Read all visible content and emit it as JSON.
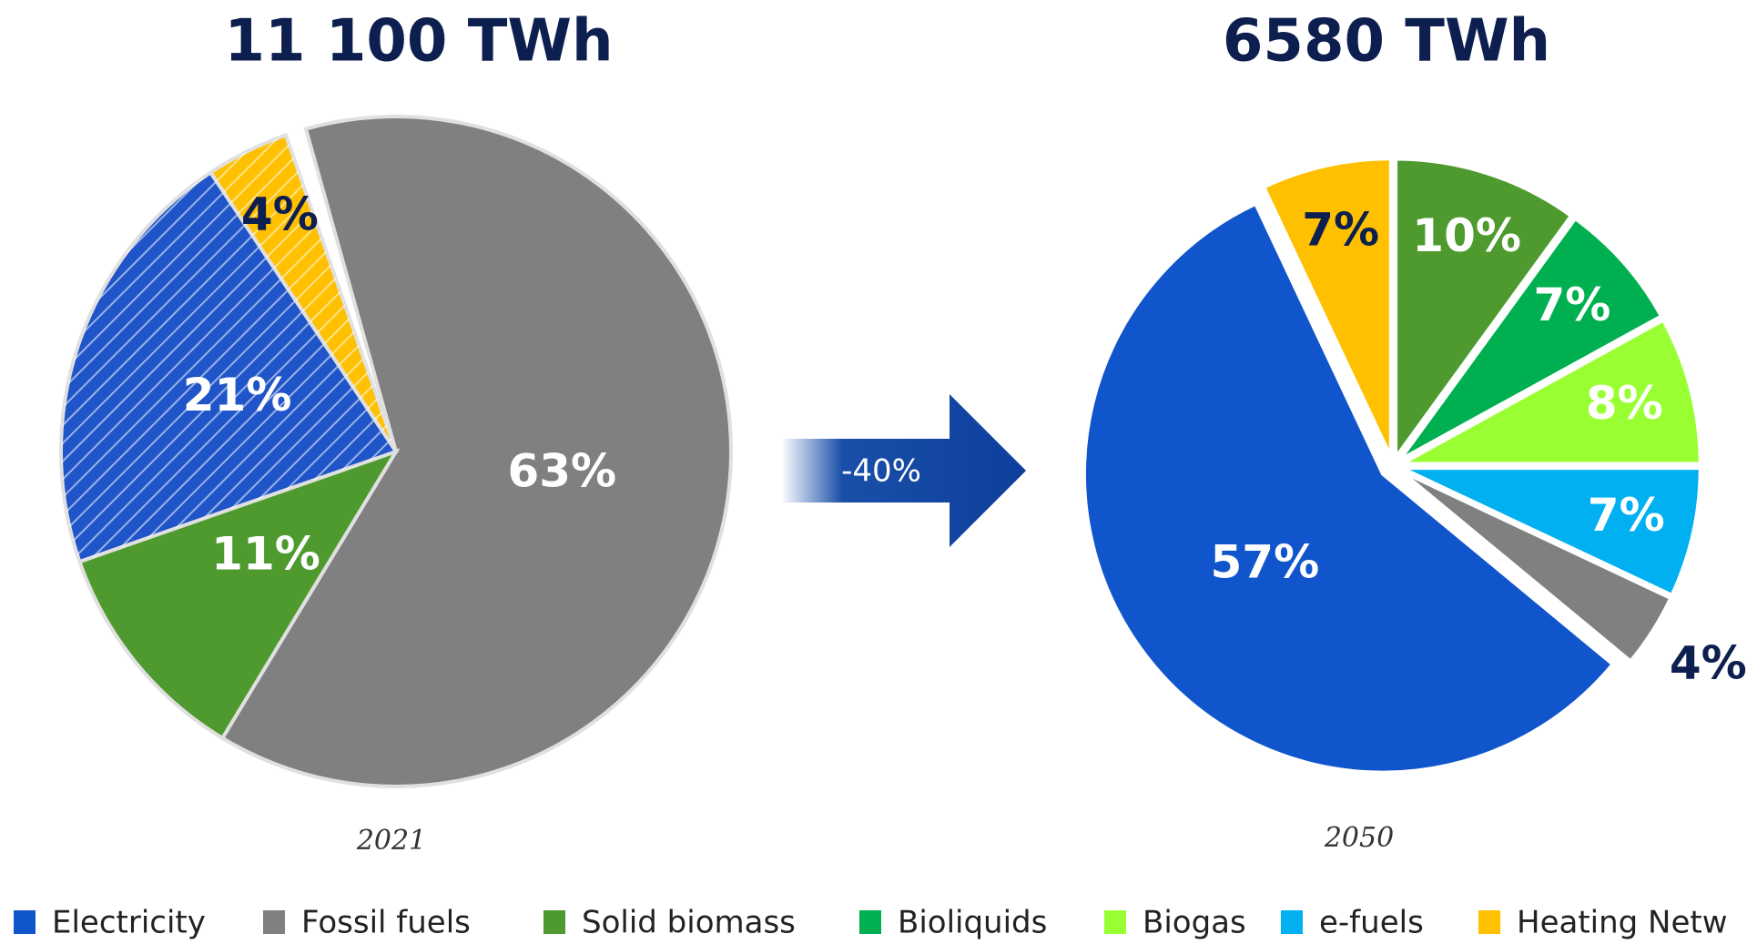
{
  "chart_data": [
    {
      "type": "pie",
      "title": "11 100 TWh",
      "caption": "2021",
      "categories": [
        "Fossil fuels",
        "Solid biomass",
        "Electricity",
        "Heating Netw"
      ],
      "values": [
        63,
        11,
        21,
        4
      ],
      "value_labels": [
        "63%",
        "11%",
        "21%",
        "4%"
      ],
      "colors": [
        "#808080",
        "#4e9a2e",
        "#1f55c8",
        "#ffc000"
      ],
      "hatched": [
        false,
        false,
        true,
        true
      ],
      "explode": false
    },
    {
      "type": "pie",
      "title": "6580 TWh",
      "caption": "2050",
      "categories": [
        "Heating Netw",
        "Solid biomass",
        "Bioliquids",
        "Biogas",
        "e-fuels",
        "Fossil fuels",
        "Electricity"
      ],
      "values": [
        7,
        10,
        7,
        8,
        7,
        4,
        57
      ],
      "value_labels": [
        "7%",
        "10%",
        "7%",
        "8%",
        "7%",
        "4%",
        "57%"
      ],
      "colors": [
        "#ffc000",
        "#4e9a2e",
        "#00b050",
        "#99ff33",
        "#00b0f0",
        "#808080",
        "#1155cc"
      ],
      "hatched": [
        false,
        false,
        false,
        false,
        false,
        false,
        false
      ],
      "explode": true
    }
  ],
  "arrow_label": "-40%",
  "legend": [
    {
      "name": "Electricity",
      "color": "#1155cc"
    },
    {
      "name": "Fossil fuels",
      "color": "#808080"
    },
    {
      "name": "Solid biomass",
      "color": "#4e9a2e"
    },
    {
      "name": "Bioliquids",
      "color": "#00b050"
    },
    {
      "name": "Biogas",
      "color": "#99ff33"
    },
    {
      "name": "e-fuels",
      "color": "#00b0f0"
    },
    {
      "name": "Heating Netw",
      "color": "#ffc000"
    }
  ]
}
